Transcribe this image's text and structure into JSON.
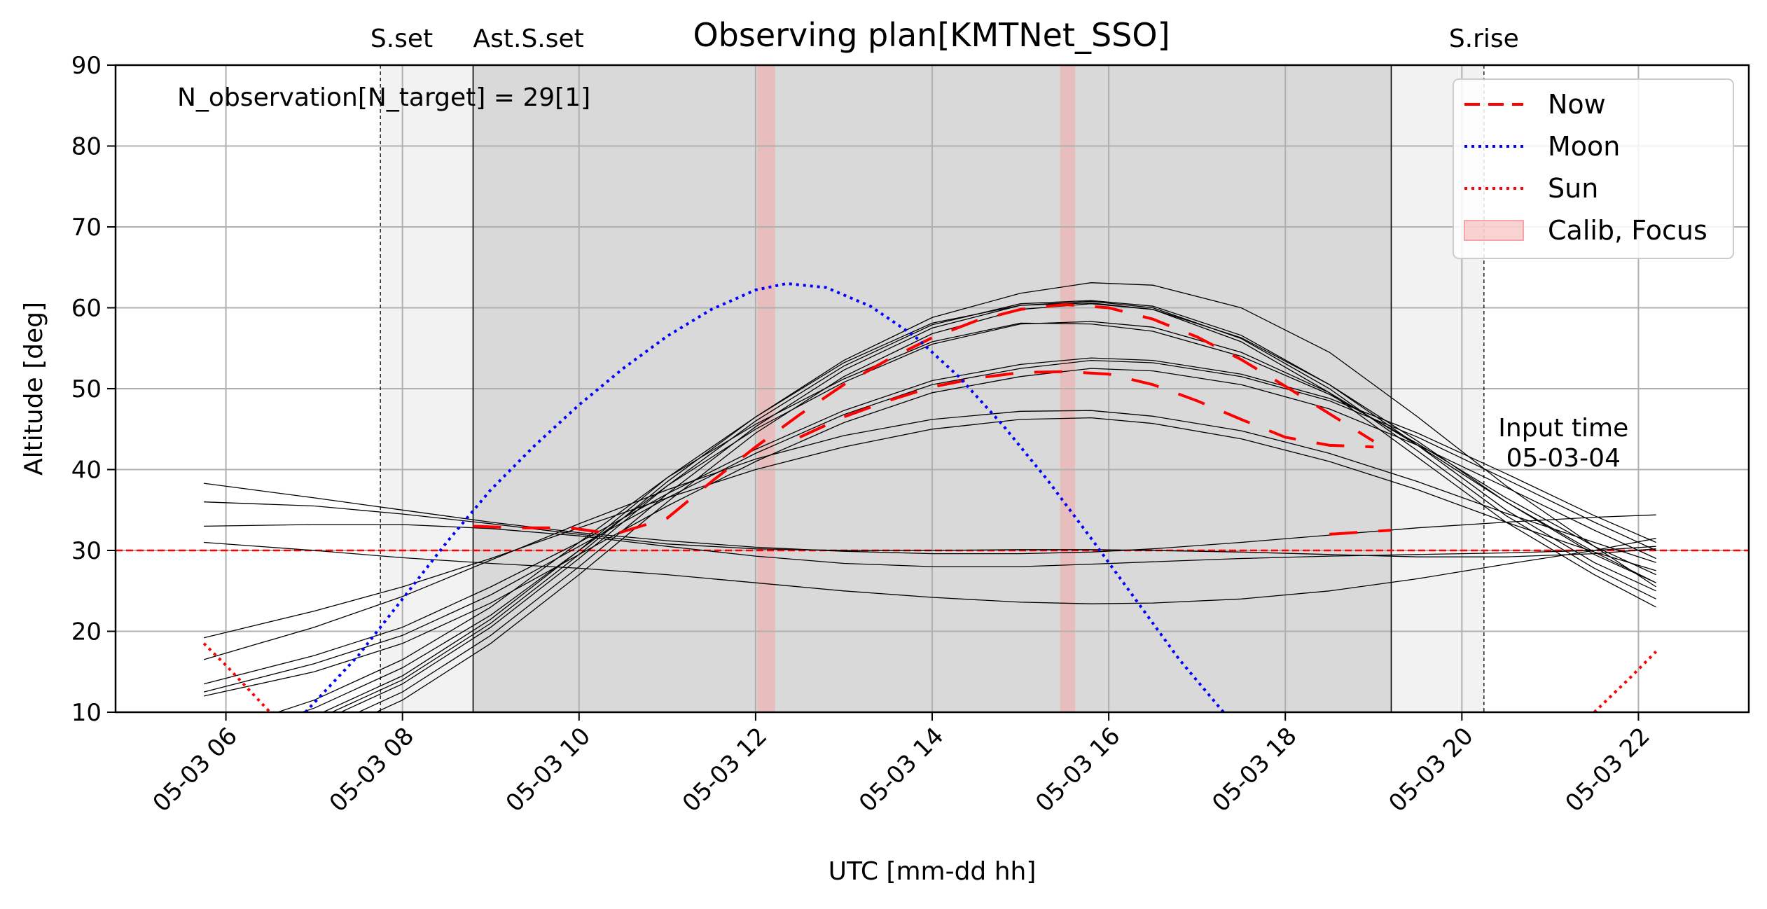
{
  "chart_data": {
    "type": "line",
    "title": "Observing plan[KMTNet_SSO]",
    "xlabel": "UTC [mm-dd hh]",
    "ylabel": "Altitude [deg]",
    "x_unit": "hour of 2023-05-03 UTC",
    "xlim": [
      4.75,
      23.25
    ],
    "ylim": [
      10,
      90
    ],
    "x_ticks": [
      6,
      8,
      10,
      12,
      14,
      16,
      18,
      20,
      22
    ],
    "x_tick_labels": [
      "05-03 06",
      "05-03 08",
      "05-03 10",
      "05-03 12",
      "05-03 14",
      "05-03 16",
      "05-03 18",
      "05-03 20",
      "05-03 22"
    ],
    "y_ticks": [
      10,
      20,
      30,
      40,
      50,
      60,
      70,
      80,
      90
    ],
    "y_tick_labels": [
      "10",
      "20",
      "30",
      "40",
      "50",
      "60",
      "70",
      "80",
      "90"
    ],
    "grid": true,
    "legend_position": "top-right",
    "annotation": "N_observation[N_target] = 29[1]",
    "input_time": {
      "x": 21.15,
      "label": "Input time\n05-03-04"
    },
    "altitude_limit": 30,
    "twilight_regions": [
      {
        "start": 7.75,
        "end": 8.8,
        "shade": "light"
      },
      {
        "start": 8.8,
        "end": 19.2,
        "shade": "dark"
      },
      {
        "start": 19.2,
        "end": 20.25,
        "shade": "light"
      }
    ],
    "event_lines": [
      {
        "x": 7.75,
        "label": "S.set",
        "style": "dashed"
      },
      {
        "x": 8.8,
        "label": "Ast.S.set",
        "style": "solid"
      },
      {
        "x": 19.2,
        "label": "",
        "style": "solid"
      },
      {
        "x": 20.25,
        "label": "S.rise",
        "style": "dashed"
      }
    ],
    "calib_focus_regions": [
      {
        "start": 12.02,
        "end": 12.22
      },
      {
        "start": 15.45,
        "end": 15.62
      }
    ],
    "legend": [
      {
        "label": "Now",
        "color": "#ff0000",
        "style": "dashed"
      },
      {
        "label": "Moon",
        "color": "#0000ff",
        "style": "dotted"
      },
      {
        "label": "Sun",
        "color": "#ff0000",
        "style": "dotted"
      },
      {
        "label": "Calib, Focus",
        "color": "#f4a6a6",
        "style": "patch"
      }
    ],
    "moon": {
      "x": [
        6.9,
        7.5,
        8.0,
        8.5,
        9.0,
        9.5,
        10.0,
        10.5,
        11.0,
        11.5,
        12.0,
        12.35,
        12.8,
        13.3,
        13.8,
        14.3,
        14.8,
        15.3,
        15.8,
        16.3,
        16.8,
        17.3,
        17.8
      ],
      "y": [
        10,
        17,
        24,
        31,
        37.5,
        43,
        48,
        52.5,
        56.5,
        59.8,
        62.2,
        63,
        62.5,
        60.2,
        56.5,
        51.5,
        45.5,
        38.8,
        31.5,
        24,
        16.5,
        10,
        4
      ]
    },
    "sun": [
      {
        "x": [
          5.75,
          6.0,
          6.5
        ],
        "y": [
          18.5,
          15.8,
          10
        ]
      },
      {
        "x": [
          21.5,
          21.9,
          22.2
        ],
        "y": [
          10,
          14.2,
          17.5
        ]
      }
    ],
    "now_segments": [
      {
        "x": [
          8.8,
          9.3,
          9.9,
          10.4,
          11.0,
          11.5,
          12.0,
          12.5,
          13.0,
          13.5,
          14.0,
          14.5,
          15.0,
          15.5,
          16.0,
          16.5,
          17.0,
          17.5,
          18.0,
          18.5,
          19.0
        ],
        "y": [
          33,
          32.8,
          32.8,
          32,
          34,
          38.5,
          42.8,
          46.8,
          50.5,
          53.6,
          56.3,
          58.4,
          59.8,
          60.4,
          60.0,
          58.6,
          56.4,
          53.6,
          50.3,
          46.9,
          43.5
        ]
      },
      {
        "x": [
          12.5,
          13.0,
          13.5,
          14.0,
          14.5,
          15.0,
          15.5,
          16.0,
          16.5,
          17.0,
          17.5,
          18.0,
          18.5,
          19.0
        ],
        "y": [
          44,
          46.5,
          48.5,
          50.2,
          51.3,
          52.0,
          52.1,
          51.8,
          50.5,
          48.5,
          46.2,
          44,
          43,
          42.8
        ]
      },
      {
        "x": [
          18.5,
          19.2
        ],
        "y": [
          32.0,
          32.5
        ]
      }
    ],
    "target_tracks": [
      {
        "x": [
          5.75,
          7.0,
          8.0,
          9.0,
          10.0,
          11.0,
          12.0,
          13.0,
          14.0,
          15.0,
          15.8,
          16.5,
          17.5,
          18.5,
          19.5,
          20.5,
          21.5,
          22.2
        ],
        "y": [
          2,
          6.5,
          11.5,
          18.5,
          27,
          36,
          44.5,
          51.5,
          56.8,
          59.8,
          60.5,
          59.8,
          55.8,
          49.5,
          41.5,
          33.5,
          27,
          23
        ]
      },
      {
        "x": [
          5.75,
          7.0,
          8.0,
          9.0,
          10.0,
          11.0,
          12.0,
          13.0,
          14.0,
          15.0,
          15.8,
          16.5,
          17.5,
          18.5,
          19.5,
          20.5,
          21.5,
          22.2
        ],
        "y": [
          3,
          7.5,
          12.5,
          19.5,
          28,
          37,
          45.3,
          52.3,
          57.5,
          60.3,
          60.8,
          60.0,
          56.2,
          50,
          42.3,
          34.3,
          27.8,
          24
        ]
      },
      {
        "x": [
          5.75,
          7.0,
          8.0,
          9.0,
          10.0,
          11.0,
          12.0,
          13.0,
          14.0,
          15.0,
          15.8,
          16.5,
          17.5,
          18.5,
          19.5,
          20.5,
          21.5,
          22.2
        ],
        "y": [
          4,
          8.5,
          13.5,
          20.5,
          29,
          38,
          46,
          52.8,
          57.9,
          60.5,
          60.9,
          60.2,
          56.6,
          50.5,
          43,
          35,
          28.5,
          25
        ]
      },
      {
        "x": [
          5.75,
          7.0,
          8.0,
          9.0,
          10.0,
          11.0,
          12.0,
          13.0,
          14.0,
          15.0,
          15.8,
          16.5,
          17.5,
          18.5,
          19.5,
          20.5,
          21.5,
          22.2
        ],
        "y": [
          5,
          9.5,
          14.5,
          21.5,
          30,
          39,
          46.5,
          53.2,
          58.1,
          60.3,
          60.6,
          59.8,
          56.3,
          50.5,
          43.5,
          36,
          29.5,
          26
        ]
      },
      {
        "x": [
          5.75,
          7.0,
          8.0,
          9.0,
          10.0,
          11.0,
          12.0,
          13.0,
          14.0,
          15.0,
          15.8,
          16.5,
          17.5,
          18.5,
          19.5,
          20.5,
          21.5,
          22.2
        ],
        "y": [
          4,
          9,
          14,
          21,
          29.5,
          38.5,
          46.5,
          53.5,
          58.8,
          61.8,
          63.1,
          62.8,
          60,
          54.5,
          46.5,
          38,
          30.5,
          25.5
        ]
      },
      {
        "x": [
          5.75,
          7.0,
          8.0,
          9.0,
          10.0,
          11.0,
          12.0,
          13.0,
          14.0,
          15.0,
          15.8,
          16.5,
          17.5,
          18.5,
          19.5,
          20.5,
          21.5,
          22.2
        ],
        "y": [
          6,
          10.5,
          15.5,
          22,
          30,
          38,
          45,
          50.8,
          55.5,
          58,
          58.3,
          57.6,
          54.5,
          49.5,
          43,
          36,
          29.8,
          26
        ]
      },
      {
        "x": [
          5.75,
          7.0,
          8.0,
          9.0,
          10.0,
          11.0,
          12.0,
          13.0,
          14.0,
          15.0,
          15.8,
          16.5,
          17.5,
          18.5,
          19.5,
          20.5,
          21.5,
          22.2
        ],
        "y": [
          7,
          11.5,
          16.5,
          23,
          31,
          39,
          45.6,
          51.2,
          55.8,
          58.1,
          58.0,
          57.1,
          54,
          49.3,
          43.2,
          36.5,
          30.5,
          27
        ]
      },
      {
        "x": [
          5.75,
          7.0,
          8.0,
          9.0,
          10.0,
          11.0,
          12.0,
          13.0,
          14.0,
          15.0,
          15.8,
          16.5,
          17.5,
          18.5,
          19.5,
          20.5,
          21.5,
          22.2
        ],
        "y": [
          12,
          15,
          18.5,
          23.5,
          29.5,
          35.5,
          41,
          45.8,
          49.5,
          51.5,
          52.5,
          52.2,
          50.5,
          47.5,
          43,
          37.8,
          32.5,
          29
        ]
      },
      {
        "x": [
          5.75,
          7.0,
          8.0,
          9.0,
          10.0,
          11.0,
          12.0,
          13.0,
          14.0,
          15.0,
          15.8,
          16.5,
          17.5,
          18.5,
          19.5,
          20.5,
          21.5,
          22.2
        ],
        "y": [
          12.5,
          16,
          19.5,
          24.5,
          30.5,
          36.5,
          42,
          46.8,
          50.5,
          52.5,
          53.5,
          53.2,
          51.5,
          48.5,
          44,
          38.8,
          33.5,
          30
        ]
      },
      {
        "x": [
          5.75,
          7.0,
          8.0,
          9.0,
          10.0,
          11.0,
          12.0,
          13.0,
          14.0,
          15.0,
          15.8,
          16.5,
          17.5,
          18.5,
          19.5,
          20.5,
          21.5,
          22.2
        ],
        "y": [
          13.5,
          17,
          20.5,
          25.5,
          31,
          37,
          42.5,
          47.3,
          51,
          53,
          53.8,
          53.5,
          51.8,
          48.8,
          44.5,
          39.5,
          34.3,
          31
        ]
      },
      {
        "x": [
          5.75,
          7.0,
          8.0,
          9.0,
          10.0,
          11.0,
          12.0,
          13.0,
          14.0,
          15.0,
          15.8,
          16.5,
          17.5,
          18.5,
          19.5,
          20.5,
          21.5,
          22.2
        ],
        "y": [
          16.5,
          20.5,
          24.3,
          28.8,
          33.3,
          37.5,
          41.3,
          44.2,
          46.2,
          47.2,
          47.3,
          46.6,
          44.8,
          42.0,
          38.5,
          34.6,
          31.0,
          28.5
        ]
      },
      {
        "x": [
          5.75,
          7.0,
          8.0,
          9.0,
          10.0,
          11.0,
          12.0,
          13.0,
          14.0,
          15.0,
          15.8,
          16.5,
          17.5,
          18.5,
          19.5,
          20.5,
          21.5,
          22.2
        ],
        "y": [
          19.2,
          22.5,
          25.5,
          29,
          32.8,
          36.5,
          40,
          42.8,
          45,
          46.2,
          46.4,
          45.7,
          43.8,
          41,
          37.5,
          33.5,
          29.8,
          27.5
        ]
      },
      {
        "x": [
          5.75,
          7.0,
          8.0,
          9.0,
          10.0,
          11.0,
          12.0,
          13.0,
          14.0,
          15.0,
          15.8,
          16.5,
          17.5,
          18.5,
          19.5,
          20.5,
          21.5,
          22.2
        ],
        "y": [
          38.3,
          36.5,
          35,
          33.5,
          32.2,
          31.2,
          30.4,
          29.9,
          29.6,
          29.6,
          29.8,
          30.2,
          31,
          31.9,
          32.8,
          33.5,
          34.1,
          34.4
        ]
      },
      {
        "x": [
          5.75,
          7.0,
          8.0,
          9.0,
          10.0,
          11.0,
          12.0,
          13.0,
          14.0,
          15.0,
          15.8,
          16.5,
          17.5,
          18.5,
          19.5,
          20.5,
          21.5,
          22.2
        ],
        "y": [
          36,
          35.5,
          34.5,
          33.3,
          32,
          30.8,
          30.2,
          30.0,
          30.0,
          30.1,
          30.1,
          30.0,
          29.8,
          29.5,
          29.2,
          29.2,
          29.6,
          30.2
        ]
      },
      {
        "x": [
          5.75,
          7.0,
          8.0,
          9.0,
          10.0,
          11.0,
          12.0,
          13.0,
          14.0,
          15.0,
          15.8,
          16.5,
          17.5,
          18.5,
          19.5,
          20.5,
          21.5,
          22.2
        ],
        "y": [
          33,
          33.2,
          33.2,
          32.7,
          31.8,
          30.5,
          29.3,
          28.4,
          28.0,
          28.0,
          28.3,
          28.6,
          29.0,
          29.3,
          29.5,
          29.7,
          30.0,
          30.5
        ]
      },
      {
        "x": [
          5.75,
          7.0,
          8.0,
          9.0,
          10.0,
          11.0,
          12.0,
          13.0,
          14.0,
          15.0,
          15.8,
          16.5,
          17.5,
          18.5,
          19.5,
          20.5,
          21.5,
          22.2
        ],
        "y": [
          31,
          30.0,
          29.1,
          28.4,
          27.8,
          27.0,
          26.0,
          25.0,
          24.2,
          23.6,
          23.4,
          23.5,
          24.0,
          25.0,
          26.5,
          28.3,
          30.0,
          31.5
        ]
      }
    ]
  }
}
